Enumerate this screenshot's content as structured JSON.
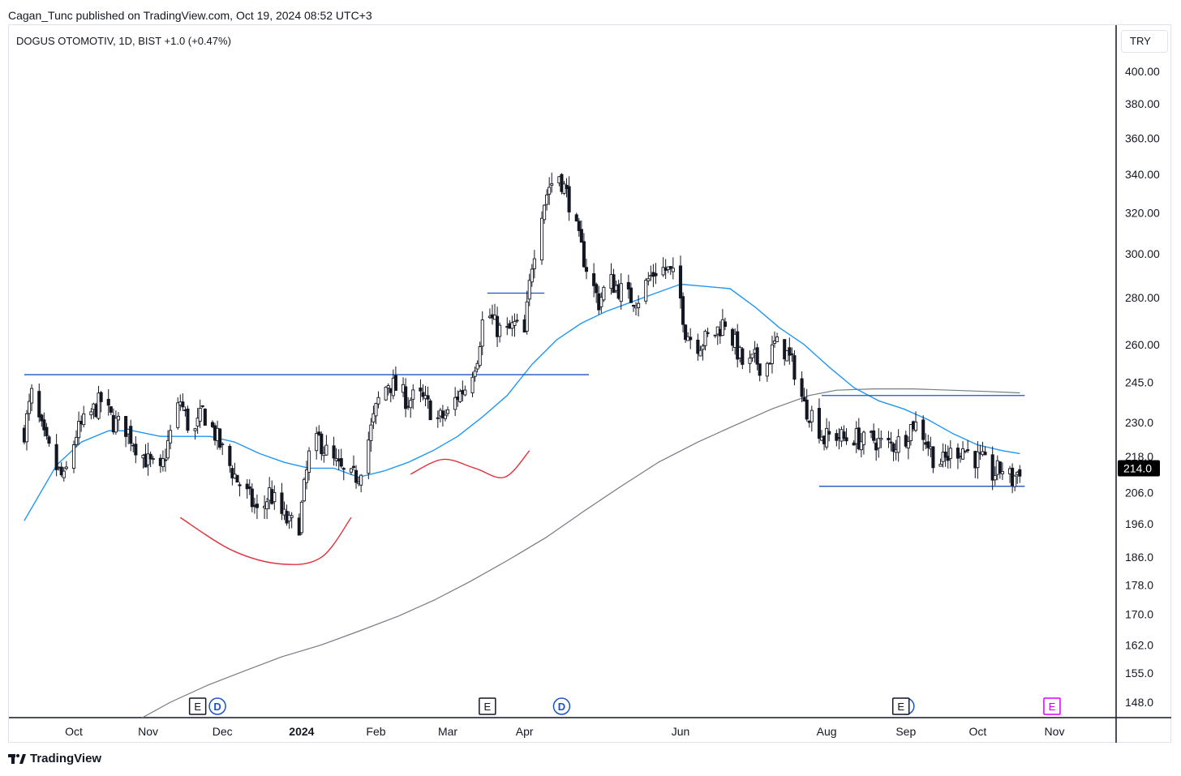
{
  "header": {
    "text": "Cagan_Tunc published on TradingView.com, Oct 19, 2024 08:52 UTC+3"
  },
  "legend": {
    "text": "DOGUS OTOMOTIV, 1D, BIST  +1.0 (+0.47%)"
  },
  "currency": "TRY",
  "footer": {
    "brand": "TradingView",
    "logo_icon": "tradingview-logo-icon"
  },
  "colors": {
    "candle": "#131722",
    "ma50": "#2196f3",
    "ma200": "#787b86",
    "level_line": "#1e53c5",
    "curve": "#e0313b",
    "price_tag_bg": "#000000",
    "earnings_icon": "#131722",
    "future_earnings_icon": "#d500f9",
    "dividend_icon": "#1e53c5"
  },
  "chart_data": {
    "type": "candlestick",
    "symbol": "DOGUS OTOMOTIV",
    "timeframe": "1D",
    "exchange": "BIST",
    "change": "+1.0 (+0.47%)",
    "y_scale": "log",
    "ylim": [
      143,
      430
    ],
    "y_ticks": [
      400,
      380,
      360,
      340,
      320,
      300,
      280,
      260,
      245,
      230,
      218,
      206,
      196,
      186,
      178,
      170,
      162,
      155,
      148
    ],
    "y_tick_labels": [
      "400.00",
      "380.00",
      "360.00",
      "340.00",
      "320.00",
      "300.00",
      "280.00",
      "260.00",
      "245.0",
      "230.0",
      "218.0",
      "206.0",
      "196.0",
      "186.0",
      "178.0",
      "170.0",
      "162.0",
      "155.0",
      "148.0"
    ],
    "x_ticks": [
      {
        "label": "Oct",
        "date": "2023-10-02",
        "bold": false
      },
      {
        "label": "Nov",
        "date": "2023-11-01",
        "bold": false
      },
      {
        "label": "Dec",
        "date": "2023-12-01",
        "bold": false
      },
      {
        "label": "2024",
        "date": "2024-01-02",
        "bold": true
      },
      {
        "label": "Feb",
        "date": "2024-02-01",
        "bold": false
      },
      {
        "label": "Mar",
        "date": "2024-03-01",
        "bold": false
      },
      {
        "label": "Apr",
        "date": "2024-04-01",
        "bold": false
      },
      {
        "label": "Jun",
        "date": "2024-06-03",
        "bold": false
      },
      {
        "label": "Aug",
        "date": "2024-08-01",
        "bold": false
      },
      {
        "label": "Sep",
        "date": "2024-09-02",
        "bold": false
      },
      {
        "label": "Oct",
        "date": "2024-10-01",
        "bold": false
      },
      {
        "label": "Nov",
        "date": "2024-11-01",
        "bold": false
      }
    ],
    "last_price": "214.0",
    "price_path": [
      [
        "2023-09-12",
        227
      ],
      [
        "2023-09-15",
        240
      ],
      [
        "2023-09-20",
        224
      ],
      [
        "2023-09-25",
        214
      ],
      [
        "2023-09-28",
        210
      ],
      [
        "2023-10-03",
        226
      ],
      [
        "2023-10-08",
        232
      ],
      [
        "2023-10-13",
        238
      ],
      [
        "2023-10-18",
        230
      ],
      [
        "2023-10-23",
        228
      ],
      [
        "2023-10-27",
        222
      ],
      [
        "2023-11-01",
        216
      ],
      [
        "2023-11-06",
        212
      ],
      [
        "2023-11-10",
        226
      ],
      [
        "2023-11-14",
        238
      ],
      [
        "2023-11-19",
        224
      ],
      [
        "2023-11-23",
        234
      ],
      [
        "2023-11-28",
        226
      ],
      [
        "2023-12-02",
        218
      ],
      [
        "2023-12-07",
        210
      ],
      [
        "2023-12-12",
        204
      ],
      [
        "2023-12-16",
        198
      ],
      [
        "2023-12-20",
        206
      ],
      [
        "2023-12-24",
        200
      ],
      [
        "2023-12-28",
        196
      ],
      [
        "2024-01-01",
        196
      ],
      [
        "2024-01-05",
        218
      ],
      [
        "2024-01-09",
        224
      ],
      [
        "2024-01-13",
        218
      ],
      [
        "2024-01-17",
        214
      ],
      [
        "2024-01-21",
        210
      ],
      [
        "2024-01-25",
        212
      ],
      [
        "2024-01-29",
        224
      ],
      [
        "2024-02-02",
        238
      ],
      [
        "2024-02-06",
        245
      ],
      [
        "2024-02-10",
        242
      ],
      [
        "2024-02-14",
        238
      ],
      [
        "2024-02-18",
        240
      ],
      [
        "2024-02-22",
        236
      ],
      [
        "2024-02-26",
        231
      ],
      [
        "2024-03-01",
        233
      ],
      [
        "2024-03-05",
        240
      ],
      [
        "2024-03-09",
        244
      ],
      [
        "2024-03-13",
        256
      ],
      [
        "2024-03-16",
        276
      ],
      [
        "2024-03-20",
        268
      ],
      [
        "2024-03-24",
        264
      ],
      [
        "2024-03-28",
        268
      ],
      [
        "2024-04-01",
        264
      ],
      [
        "2024-04-04",
        296
      ],
      [
        "2024-04-08",
        322
      ],
      [
        "2024-04-11",
        334
      ],
      [
        "2024-04-15",
        340
      ],
      [
        "2024-04-19",
        326
      ],
      [
        "2024-04-23",
        306
      ],
      [
        "2024-04-27",
        290
      ],
      [
        "2024-05-01",
        278
      ],
      [
        "2024-05-05",
        288
      ],
      [
        "2024-05-09",
        284
      ],
      [
        "2024-05-13",
        280
      ],
      [
        "2024-05-17",
        280
      ],
      [
        "2024-05-21",
        288
      ],
      [
        "2024-05-25",
        294
      ],
      [
        "2024-05-29",
        292
      ],
      [
        "2024-06-02",
        286
      ],
      [
        "2024-06-05",
        266
      ],
      [
        "2024-06-09",
        260
      ],
      [
        "2024-06-13",
        262
      ],
      [
        "2024-06-17",
        265
      ],
      [
        "2024-06-21",
        270
      ],
      [
        "2024-06-25",
        260
      ],
      [
        "2024-06-29",
        250
      ],
      [
        "2024-07-03",
        254
      ],
      [
        "2024-07-07",
        250
      ],
      [
        "2024-07-11",
        260
      ],
      [
        "2024-07-15",
        258
      ],
      [
        "2024-07-19",
        250
      ],
      [
        "2024-07-23",
        236
      ],
      [
        "2024-07-27",
        232
      ],
      [
        "2024-07-31",
        224
      ],
      [
        "2024-08-04",
        226
      ],
      [
        "2024-08-08",
        224
      ],
      [
        "2024-08-12",
        225
      ],
      [
        "2024-08-16",
        223
      ],
      [
        "2024-08-20",
        224
      ],
      [
        "2024-08-24",
        222
      ],
      [
        "2024-08-28",
        222
      ],
      [
        "2024-09-01",
        224
      ],
      [
        "2024-09-05",
        230
      ],
      [
        "2024-09-09",
        226
      ],
      [
        "2024-09-13",
        218
      ],
      [
        "2024-09-17",
        216
      ],
      [
        "2024-09-21",
        220
      ],
      [
        "2024-09-25",
        221
      ],
      [
        "2024-09-29",
        218
      ],
      [
        "2024-10-03",
        216
      ],
      [
        "2024-10-07",
        212
      ],
      [
        "2024-10-11",
        214
      ],
      [
        "2024-10-15",
        210
      ],
      [
        "2024-10-18",
        214
      ]
    ],
    "ma50_path": [
      [
        "2023-09-12",
        197
      ],
      [
        "2023-09-25",
        215
      ],
      [
        "2023-10-05",
        223
      ],
      [
        "2023-10-16",
        227
      ],
      [
        "2023-10-26",
        227
      ],
      [
        "2023-11-06",
        225
      ],
      [
        "2023-11-16",
        225
      ],
      [
        "2023-11-26",
        225
      ],
      [
        "2023-12-06",
        223
      ],
      [
        "2023-12-16",
        219
      ],
      [
        "2023-12-26",
        216
      ],
      [
        "2024-01-05",
        214
      ],
      [
        "2024-01-15",
        214
      ],
      [
        "2024-01-25",
        211
      ],
      [
        "2024-02-04",
        213
      ],
      [
        "2024-02-14",
        216
      ],
      [
        "2024-02-24",
        220
      ],
      [
        "2024-03-05",
        225
      ],
      [
        "2024-03-15",
        232
      ],
      [
        "2024-03-25",
        240
      ],
      [
        "2024-04-04",
        252
      ],
      [
        "2024-04-14",
        262
      ],
      [
        "2024-04-24",
        269
      ],
      [
        "2024-05-04",
        274
      ],
      [
        "2024-05-14",
        278
      ],
      [
        "2024-05-24",
        282
      ],
      [
        "2024-06-03",
        286
      ],
      [
        "2024-06-13",
        285
      ],
      [
        "2024-06-23",
        284
      ],
      [
        "2024-07-03",
        276
      ],
      [
        "2024-07-13",
        267
      ],
      [
        "2024-07-23",
        260
      ],
      [
        "2024-08-02",
        251
      ],
      [
        "2024-08-12",
        243
      ],
      [
        "2024-08-22",
        238
      ],
      [
        "2024-09-01",
        235
      ],
      [
        "2024-09-11",
        231
      ],
      [
        "2024-09-21",
        226
      ],
      [
        "2024-10-01",
        222
      ],
      [
        "2024-10-11",
        220
      ],
      [
        "2024-10-18",
        219
      ]
    ],
    "ma200_path": [
      [
        "2023-10-25",
        143
      ],
      [
        "2023-11-10",
        148
      ],
      [
        "2023-11-25",
        152
      ],
      [
        "2023-12-10",
        155.5
      ],
      [
        "2023-12-25",
        159
      ],
      [
        "2024-01-10",
        162
      ],
      [
        "2024-01-25",
        165.5
      ],
      [
        "2024-02-10",
        169.5
      ],
      [
        "2024-02-25",
        174
      ],
      [
        "2024-03-10",
        179
      ],
      [
        "2024-03-25",
        185
      ],
      [
        "2024-04-10",
        192
      ],
      [
        "2024-04-25",
        200
      ],
      [
        "2024-05-10",
        208
      ],
      [
        "2024-05-25",
        216
      ],
      [
        "2024-06-10",
        223
      ],
      [
        "2024-06-25",
        229
      ],
      [
        "2024-07-10",
        235
      ],
      [
        "2024-07-25",
        240
      ],
      [
        "2024-08-05",
        242
      ],
      [
        "2024-08-20",
        242.5
      ],
      [
        "2024-09-05",
        242.5
      ],
      [
        "2024-09-20",
        242
      ],
      [
        "2024-10-05",
        241.5
      ],
      [
        "2024-10-18",
        241
      ]
    ],
    "horizontal_levels": [
      {
        "price": 248,
        "from": "2023-09-12",
        "to": "2024-04-27"
      },
      {
        "price": 282,
        "from": "2024-03-17",
        "to": "2024-04-09"
      },
      {
        "price": 240,
        "from": "2024-07-30",
        "to": "2024-10-20"
      },
      {
        "price": 208,
        "from": "2024-07-29",
        "to": "2024-10-20"
      }
    ],
    "curve_drawings": [
      [
        [
          "2023-11-14",
          198
        ],
        [
          "2023-12-05",
          188
        ],
        [
          "2023-12-25",
          184
        ],
        [
          "2024-01-10",
          186
        ],
        [
          "2024-01-22",
          198
        ]
      ],
      [
        [
          "2024-02-15",
          212
        ],
        [
          "2024-02-28",
          217
        ],
        [
          "2024-03-12",
          214
        ],
        [
          "2024-03-24",
          211
        ],
        [
          "2024-04-03",
          220
        ]
      ]
    ],
    "event_markers": [
      {
        "kind": "earnings",
        "label": "E",
        "date": "2023-11-21",
        "future": false
      },
      {
        "kind": "dividend",
        "label": "D",
        "date": "2023-11-29",
        "future": false
      },
      {
        "kind": "earnings",
        "label": "E",
        "date": "2024-03-17",
        "future": false
      },
      {
        "kind": "dividend",
        "label": "D",
        "date": "2024-04-16",
        "future": false
      },
      {
        "kind": "dividend",
        "label": "D",
        "date": "2024-09-02",
        "future": false
      },
      {
        "kind": "earnings",
        "label": "E",
        "date": "2024-08-31",
        "future": false
      },
      {
        "kind": "earnings",
        "label": "E",
        "date": "2024-10-31",
        "future": true
      }
    ]
  }
}
